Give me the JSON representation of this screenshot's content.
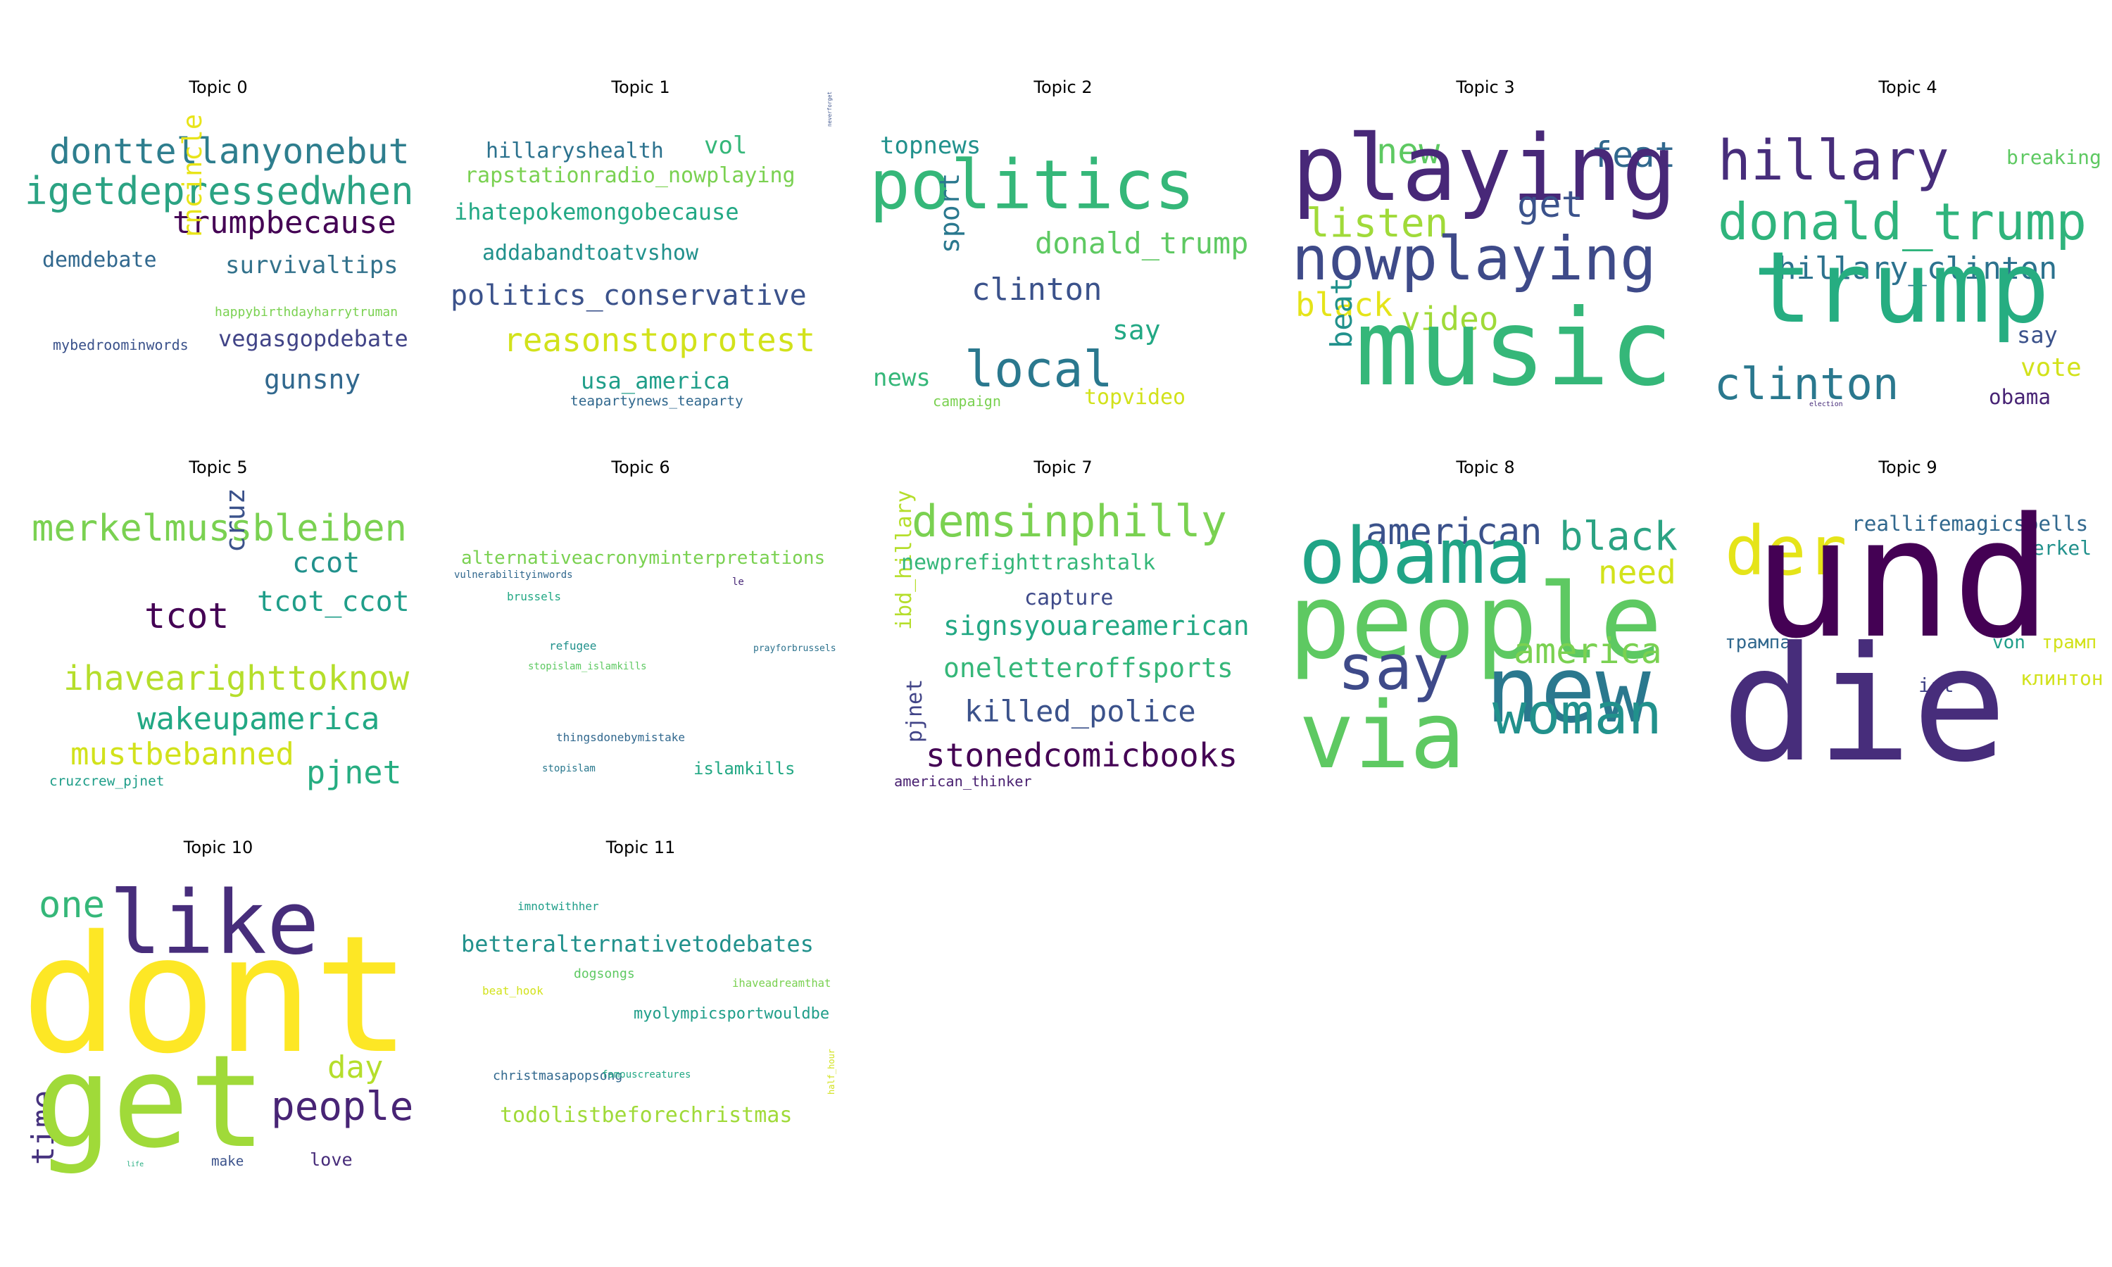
{
  "topics": [
    {
      "title": "Topic 0",
      "words": [
        {
          "text": "donttellanyonebut",
          "color": "#2e7e8e"
        },
        {
          "text": "igetdepressedwhen",
          "color": "#2ba383"
        },
        {
          "text": "trumpbecause",
          "color": "#440154"
        },
        {
          "text": "demdebate",
          "color": "#31688e"
        },
        {
          "text": "survivaltips",
          "color": "#33728c"
        },
        {
          "text": "rncincle",
          "color": "#e8e419"
        },
        {
          "text": "happybirthdayharrytruman",
          "color": "#7ad151"
        },
        {
          "text": "mybedroominwords",
          "color": "#3b528b"
        },
        {
          "text": "vegasgopdebate",
          "color": "#414487"
        },
        {
          "text": "gunsny",
          "color": "#31688e"
        }
      ]
    },
    {
      "title": "Topic 1",
      "words": [
        {
          "text": "hillaryshealth",
          "color": "#2c728e"
        },
        {
          "text": "vol",
          "color": "#35b779"
        },
        {
          "text": "rapstationradio_nowplaying",
          "color": "#7ad151"
        },
        {
          "text": "neverforget",
          "color": "#3b528b"
        },
        {
          "text": "ihatepokemongobecause",
          "color": "#22a884"
        },
        {
          "text": "addabandtoatvshow",
          "color": "#21918c"
        },
        {
          "text": "politics_conservative",
          "color": "#3b528b"
        },
        {
          "text": "reasonstoprotest",
          "color": "#d2e21b"
        },
        {
          "text": "usa_america",
          "color": "#1f9e89"
        },
        {
          "text": "teapartynews_teaparty",
          "color": "#31688e"
        }
      ]
    },
    {
      "title": "Topic 2",
      "words": [
        {
          "text": "topnews",
          "color": "#21918c"
        },
        {
          "text": "politics",
          "color": "#35b779"
        },
        {
          "text": "donald_trump",
          "color": "#5ec962"
        },
        {
          "text": "sport",
          "color": "#2a788e"
        },
        {
          "text": "clinton",
          "color": "#3b528b"
        },
        {
          "text": "say",
          "color": "#22a884"
        },
        {
          "text": "news",
          "color": "#35b779"
        },
        {
          "text": "local",
          "color": "#2a788e"
        },
        {
          "text": "campaign",
          "color": "#7ad151"
        },
        {
          "text": "topvideo",
          "color": "#d2e21b"
        }
      ]
    },
    {
      "title": "Topic 3",
      "words": [
        {
          "text": "new",
          "color": "#5ec962"
        },
        {
          "text": "feat",
          "color": "#31688e"
        },
        {
          "text": "playing",
          "color": "#482878"
        },
        {
          "text": "listen",
          "color": "#a0da39"
        },
        {
          "text": "get",
          "color": "#3b528b"
        },
        {
          "text": "nowplaying",
          "color": "#3e4a89"
        },
        {
          "text": "black",
          "color": "#e5e419"
        },
        {
          "text": "video",
          "color": "#a0da39"
        },
        {
          "text": "beat",
          "color": "#21918c"
        },
        {
          "text": "music",
          "color": "#35b779"
        }
      ]
    },
    {
      "title": "Topic 4",
      "words": [
        {
          "text": "hillary",
          "color": "#472d7b"
        },
        {
          "text": "breaking",
          "color": "#5ec962"
        },
        {
          "text": "donald_trump",
          "color": "#2fb47c"
        },
        {
          "text": "hillary_clinton",
          "color": "#2c728e"
        },
        {
          "text": "trump",
          "color": "#26ad81"
        },
        {
          "text": "say",
          "color": "#3b528b"
        },
        {
          "text": "vote",
          "color": "#d2e21b"
        },
        {
          "text": "clinton",
          "color": "#2a788e"
        },
        {
          "text": "obama",
          "color": "#482475"
        },
        {
          "text": "election",
          "color": "#472c7a"
        }
      ]
    },
    {
      "title": "Topic 5",
      "words": [
        {
          "text": "merkelmussbleiben",
          "color": "#7ad151"
        },
        {
          "text": "ccot",
          "color": "#21918c"
        },
        {
          "text": "cruz",
          "color": "#3b528b"
        },
        {
          "text": "tcot_ccot",
          "color": "#1f9e89"
        },
        {
          "text": "tcot",
          "color": "#440154"
        },
        {
          "text": "ihavearighttoknow",
          "color": "#b5de2b"
        },
        {
          "text": "wakeupamerica",
          "color": "#22a884"
        },
        {
          "text": "mustbebanned",
          "color": "#d2e21b"
        },
        {
          "text": "cruzcrew_pjnet",
          "color": "#1f9e89"
        },
        {
          "text": "pjnet",
          "color": "#26ad81"
        }
      ]
    },
    {
      "title": "Topic 6",
      "words": [
        {
          "text": "alternativeacronyminterpretations",
          "color": "#7ad151"
        },
        {
          "text": "vulnerabilityinwords",
          "color": "#31688e"
        },
        {
          "text": "le",
          "color": "#482878"
        },
        {
          "text": "brussels",
          "color": "#22a884"
        },
        {
          "text": "refugee",
          "color": "#21918c"
        },
        {
          "text": "prayforbrussels",
          "color": "#2c728e"
        },
        {
          "text": "stopislam_islamkills",
          "color": "#5ec962"
        },
        {
          "text": "thingsdonebymistake",
          "color": "#31688e"
        },
        {
          "text": "stopislam",
          "color": "#2a788e"
        },
        {
          "text": "islamkills",
          "color": "#22a884"
        }
      ]
    },
    {
      "title": "Topic 7",
      "words": [
        {
          "text": "demsinphilly",
          "color": "#7ad151"
        },
        {
          "text": "ibd_hillary",
          "color": "#b5de2b"
        },
        {
          "text": "newprefighttrashtalk",
          "color": "#35b779"
        },
        {
          "text": "capture",
          "color": "#3e4a89"
        },
        {
          "text": "signsyouareamerican",
          "color": "#22a884"
        },
        {
          "text": "oneletteroffsports",
          "color": "#35b779"
        },
        {
          "text": "killed_police",
          "color": "#3b528b"
        },
        {
          "text": "pjnet",
          "color": "#414487"
        },
        {
          "text": "stonedcomicbooks",
          "color": "#440154"
        },
        {
          "text": "american_thinker",
          "color": "#481f70"
        }
      ]
    },
    {
      "title": "Topic 8",
      "words": [
        {
          "text": "american",
          "color": "#3b528b"
        },
        {
          "text": "black",
          "color": "#2ba383"
        },
        {
          "text": "obama",
          "color": "#20a486"
        },
        {
          "text": "need",
          "color": "#d2e21b"
        },
        {
          "text": "people",
          "color": "#5ec962"
        },
        {
          "text": "say",
          "color": "#3e4a89"
        },
        {
          "text": "america",
          "color": "#7ad151"
        },
        {
          "text": "new",
          "color": "#2a788e"
        },
        {
          "text": "woman",
          "color": "#21918c"
        },
        {
          "text": "via",
          "color": "#5ec962"
        }
      ]
    },
    {
      "title": "Topic 9",
      "words": [
        {
          "text": "der",
          "color": "#e5e419"
        },
        {
          "text": "reallifemagicspells",
          "color": "#31688e"
        },
        {
          "text": "merkel",
          "color": "#21918c"
        },
        {
          "text": "und",
          "color": "#440154"
        },
        {
          "text": "трампа",
          "color": "#31688e"
        },
        {
          "text": "von",
          "color": "#1f9e89"
        },
        {
          "text": "трамп",
          "color": "#d2e21b"
        },
        {
          "text": "клинтон",
          "color": "#d2e21b"
        },
        {
          "text": "ist",
          "color": "#414487"
        },
        {
          "text": "die",
          "color": "#472d7b"
        }
      ]
    },
    {
      "title": "Topic 10",
      "words": [
        {
          "text": "one",
          "color": "#35b779"
        },
        {
          "text": "like",
          "color": "#472d7b"
        },
        {
          "text": "dont",
          "color": "#fde725"
        },
        {
          "text": "day",
          "color": "#b5de2b"
        },
        {
          "text": "time",
          "color": "#46327e"
        },
        {
          "text": "get",
          "color": "#a0da39"
        },
        {
          "text": "people",
          "color": "#482475"
        },
        {
          "text": "life",
          "color": "#26ad81"
        },
        {
          "text": "make",
          "color": "#3b528b"
        },
        {
          "text": "love",
          "color": "#472c7a"
        }
      ]
    },
    {
      "title": "Topic 11",
      "words": [
        {
          "text": "imnotwithher",
          "color": "#1f9e89"
        },
        {
          "text": "betteralternativetodebates",
          "color": "#21918c"
        },
        {
          "text": "dogsongs",
          "color": "#5ec962"
        },
        {
          "text": "ihaveadreamthat",
          "color": "#7ad151"
        },
        {
          "text": "beat_hook",
          "color": "#d2e21b"
        },
        {
          "text": "myolympicsportwouldbe",
          "color": "#1f9e89"
        },
        {
          "text": "christmasapopsong",
          "color": "#31688e"
        },
        {
          "text": "famouscreatures",
          "color": "#22a884"
        },
        {
          "text": "half_hour",
          "color": "#d2e21b"
        },
        {
          "text": "todolistbeforechristmas",
          "color": "#a0da39"
        }
      ]
    }
  ]
}
